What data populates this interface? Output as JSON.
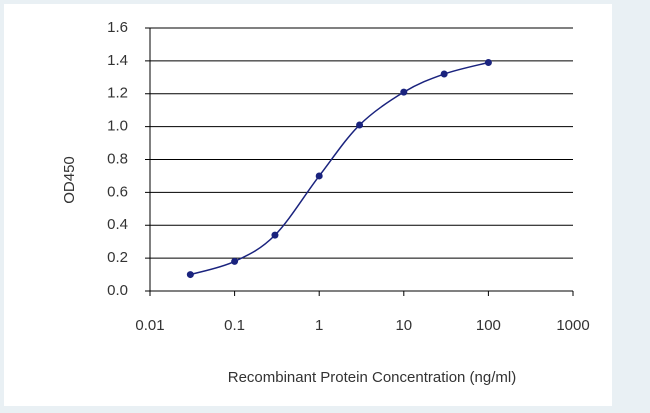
{
  "chart_data": {
    "type": "line",
    "x_label": "Recombinant Protein Concentration  (ng/ml)",
    "y_label": "OD450",
    "x": [
      0.03,
      0.1,
      0.3,
      1,
      3,
      10,
      30,
      100
    ],
    "series": [
      {
        "color": "#1a237e",
        "values": [
          0.1,
          0.18,
          0.34,
          0.7,
          1.01,
          1.21,
          1.32,
          1.39
        ]
      }
    ],
    "xscale": "log",
    "xlim": [
      0.01,
      1000
    ],
    "xticks": [
      0.01,
      0.1,
      1,
      10,
      100,
      1000
    ],
    "ylim": [
      0,
      1.6
    ],
    "yticks": [
      {
        "value": 0,
        "label": "0.0"
      },
      0.2,
      0.4,
      0.6,
      0.8,
      {
        "value": 1,
        "label": "1.0"
      },
      1.2,
      1.4,
      1.6
    ],
    "grid": true
  }
}
